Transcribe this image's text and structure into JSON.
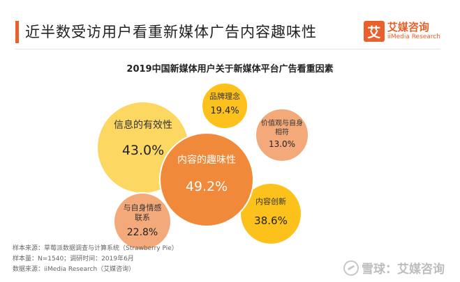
{
  "header": {
    "title": "近半数受访用户看重新媒体广告内容趣味性",
    "brand_badge": "艾",
    "brand_name": "艾媒咨询",
    "brand_sub": "iiMedia Research"
  },
  "colors": {
    "accent": "#e8612c",
    "bubble_yellow_light": "#fcd863",
    "bubble_yellow": "#fcc21b",
    "bubble_orange": "#f08a3a",
    "bubble_peach": "#f4a97b"
  },
  "chart_data": {
    "type": "bubble",
    "title": "2019中国新媒体用户关于新媒体平台广告看重因素",
    "unit": "%",
    "items": [
      {
        "label": "信息的有效性",
        "value": 43.0,
        "display": "43.0%",
        "color": "#fcd863"
      },
      {
        "label": "品牌理念",
        "value": 19.4,
        "display": "19.4%",
        "color": "#fcc21b"
      },
      {
        "label": "价值观与自身相符",
        "value": 13.0,
        "display": "13.0%",
        "color": "#f4a97b"
      },
      {
        "label": "内容的趣味性",
        "value": 49.2,
        "display": "49.2%",
        "color": "#f08a3a"
      },
      {
        "label": "内容创新",
        "value": 38.6,
        "display": "38.6%",
        "color": "#fcc21b"
      },
      {
        "label": "与自身情感联系",
        "value": 22.8,
        "display": "22.8%",
        "color": "#f4a97b"
      }
    ]
  },
  "footnotes": {
    "line1": "样本来源：草莓派数据调查与计算系统（Strawberry Pie）",
    "line2": "样本量：N=1540；调研时间：2019年6月",
    "line3": "数据来源：iiMedia Research（艾媒咨询）"
  },
  "watermark": {
    "text": "雪球：艾媒咨询"
  }
}
